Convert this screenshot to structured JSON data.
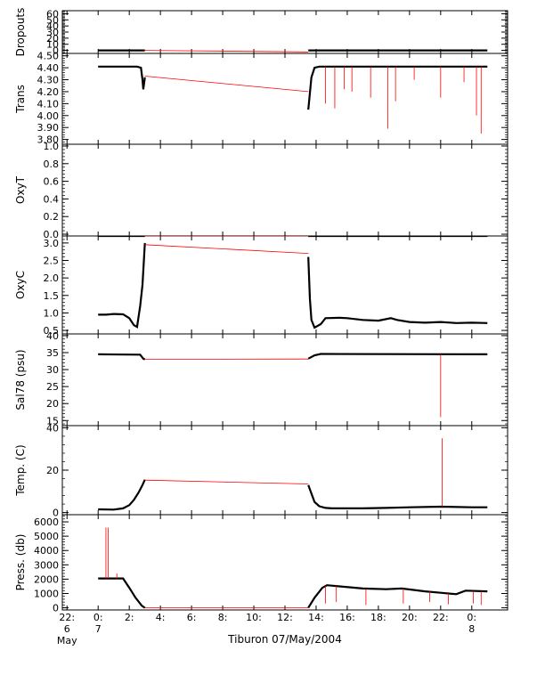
{
  "chart_data": {
    "type": "line",
    "x_axis": {
      "label": "Tiburon 07/May/2004",
      "ticks": [
        {
          "t": -2,
          "lines": [
            "22:",
            "6",
            "May"
          ]
        },
        {
          "t": 0,
          "lines": [
            "0:",
            "7"
          ]
        },
        {
          "t": 2,
          "lines": [
            "2:"
          ]
        },
        {
          "t": 4,
          "lines": [
            "4:"
          ]
        },
        {
          "t": 6,
          "lines": [
            "6:"
          ]
        },
        {
          "t": 8,
          "lines": [
            "8:"
          ]
        },
        {
          "t": 10,
          "lines": [
            "10:"
          ]
        },
        {
          "t": 12,
          "lines": [
            "12:"
          ]
        },
        {
          "t": 14,
          "lines": [
            "14:"
          ]
        },
        {
          "t": 16,
          "lines": [
            "16:"
          ]
        },
        {
          "t": 18,
          "lines": [
            "18:"
          ]
        },
        {
          "t": 20,
          "lines": [
            "20:"
          ]
        },
        {
          "t": 22,
          "lines": [
            "22:"
          ]
        },
        {
          "t": 24,
          "lines": [
            "0:",
            "8"
          ]
        }
      ],
      "range_hours": [
        -2.3,
        26.3
      ]
    },
    "panels": [
      {
        "id": "dropouts",
        "ylabel": "Dropouts",
        "ylim": [
          -5,
          65
        ],
        "ticks": [
          {
            "v": 0,
            "label": "0"
          },
          {
            "v": 10,
            "label": "10"
          },
          {
            "v": 20,
            "label": "20"
          },
          {
            "v": 30,
            "label": "30"
          },
          {
            "v": 40,
            "label": "40"
          },
          {
            "v": 50,
            "label": "50"
          },
          {
            "v": 60,
            "label": "60"
          }
        ],
        "series": [
          {
            "style": "black",
            "points": [
              [
                0,
                0
              ],
              [
                3.0,
                0
              ]
            ]
          },
          {
            "style": "black",
            "points": [
              [
                13.5,
                0
              ],
              [
                25.0,
                0
              ]
            ]
          },
          {
            "style": "red",
            "points": [
              [
                3.0,
                0
              ],
              [
                13.5,
                -2.5
              ]
            ]
          }
        ],
        "spikes": []
      },
      {
        "id": "trans",
        "ylabel": "Trans",
        "ylim": [
          3.76,
          4.52
        ],
        "ticks": [
          {
            "v": 3.8,
            "label": "3.80"
          },
          {
            "v": 3.9,
            "label": "3.90"
          },
          {
            "v": 4.0,
            "label": "4.00"
          },
          {
            "v": 4.1,
            "label": "4.10"
          },
          {
            "v": 4.2,
            "label": "4.20"
          },
          {
            "v": 4.3,
            "label": "4.30"
          },
          {
            "v": 4.4,
            "label": "4.40"
          },
          {
            "v": 4.5,
            "label": "4.50"
          }
        ],
        "series": [
          {
            "style": "black",
            "points": [
              [
                0,
                4.41
              ],
              [
                2.5,
                4.41
              ],
              [
                2.75,
                4.4
              ],
              [
                2.85,
                4.3
              ],
              [
                2.9,
                4.22
              ],
              [
                3.0,
                4.32
              ]
            ]
          },
          {
            "style": "red",
            "points": [
              [
                3.0,
                4.33
              ],
              [
                13.5,
                4.2
              ]
            ]
          },
          {
            "style": "black",
            "points": [
              [
                13.5,
                4.05
              ],
              [
                13.7,
                4.32
              ],
              [
                13.9,
                4.4
              ],
              [
                14.2,
                4.41
              ],
              [
                25.0,
                4.41
              ]
            ]
          }
        ],
        "spikes": [
          [
            14.6,
            4.1
          ],
          [
            15.2,
            4.06
          ],
          [
            15.8,
            4.22
          ],
          [
            16.3,
            4.2
          ],
          [
            17.5,
            4.15
          ],
          [
            18.6,
            3.89
          ],
          [
            19.1,
            4.12
          ],
          [
            20.3,
            4.3
          ],
          [
            22.0,
            4.15
          ],
          [
            23.5,
            4.28
          ],
          [
            24.3,
            4.0
          ],
          [
            24.6,
            3.85
          ]
        ]
      },
      {
        "id": "oxyt",
        "ylabel": "OxyT",
        "ylim": [
          -0.02,
          1.02
        ],
        "ticks": [
          {
            "v": 0.0,
            "label": "0.0"
          },
          {
            "v": 0.2,
            "label": "0.2"
          },
          {
            "v": 0.4,
            "label": "0.4"
          },
          {
            "v": 0.6,
            "label": "0.6"
          },
          {
            "v": 0.8,
            "label": "0.8"
          },
          {
            "v": 1.0,
            "label": "1.0"
          }
        ],
        "series": [],
        "spikes": []
      },
      {
        "id": "oxyc",
        "ylabel": "OxyC",
        "ylim": [
          0.4,
          3.2
        ],
        "ticks": [
          {
            "v": 0.5,
            "label": "0.5"
          },
          {
            "v": 1.0,
            "label": "1.0"
          },
          {
            "v": 1.5,
            "label": "1.5"
          },
          {
            "v": 2.0,
            "label": "2.0"
          },
          {
            "v": 2.5,
            "label": "2.5"
          },
          {
            "v": 3.0,
            "label": "3.0"
          }
        ],
        "series": [
          {
            "style": "black",
            "points": [
              [
                0,
                3.2
              ],
              [
                3.0,
                3.2
              ]
            ]
          },
          {
            "style": "black",
            "points": [
              [
                13.5,
                3.2
              ],
              [
                25.0,
                3.2
              ]
            ]
          },
          {
            "style": "red",
            "points": [
              [
                3.0,
                3.2
              ],
              [
                13.5,
                3.2
              ]
            ]
          },
          {
            "style": "black",
            "points": [
              [
                0,
                0.95
              ],
              [
                0.5,
                0.95
              ],
              [
                1.0,
                0.97
              ],
              [
                1.6,
                0.96
              ],
              [
                2.0,
                0.85
              ],
              [
                2.3,
                0.65
              ],
              [
                2.5,
                0.6
              ],
              [
                2.7,
                1.2
              ],
              [
                2.85,
                1.8
              ],
              [
                2.95,
                2.6
              ],
              [
                3.0,
                3.0
              ]
            ]
          },
          {
            "style": "red",
            "points": [
              [
                3.0,
                2.95
              ],
              [
                13.5,
                2.7
              ]
            ]
          },
          {
            "style": "black",
            "points": [
              [
                13.5,
                2.6
              ],
              [
                13.6,
                1.4
              ],
              [
                13.7,
                0.8
              ],
              [
                13.9,
                0.58
              ],
              [
                14.3,
                0.68
              ],
              [
                14.6,
                0.85
              ],
              [
                15.5,
                0.86
              ],
              [
                16.0,
                0.85
              ],
              [
                17.0,
                0.8
              ],
              [
                18.0,
                0.78
              ],
              [
                18.8,
                0.85
              ],
              [
                19.2,
                0.8
              ],
              [
                20.0,
                0.74
              ],
              [
                21.0,
                0.72
              ],
              [
                22.0,
                0.74
              ],
              [
                23.0,
                0.71
              ],
              [
                24.0,
                0.72
              ],
              [
                25.0,
                0.71
              ]
            ]
          }
        ],
        "spikes": []
      },
      {
        "id": "sal78",
        "ylabel": "Sal78 (psu)",
        "ylim": [
          13.5,
          40.5
        ],
        "ticks": [
          {
            "v": 15,
            "label": "15"
          },
          {
            "v": 20,
            "label": "20"
          },
          {
            "v": 25,
            "label": "25"
          },
          {
            "v": 30,
            "label": "30"
          },
          {
            "v": 35,
            "label": "35"
          },
          {
            "v": 40,
            "label": "40"
          }
        ],
        "series": [
          {
            "style": "black",
            "points": [
              [
                0,
                34.5
              ],
              [
                2.7,
                34.4
              ],
              [
                2.9,
                33.2
              ],
              [
                3.0,
                33.0
              ]
            ]
          },
          {
            "style": "red",
            "points": [
              [
                3.0,
                33.0
              ],
              [
                13.5,
                33.1
              ]
            ]
          },
          {
            "style": "black",
            "points": [
              [
                13.5,
                33.2
              ],
              [
                13.9,
                34.2
              ],
              [
                14.3,
                34.6
              ],
              [
                25.0,
                34.5
              ]
            ]
          }
        ],
        "spikes": [
          [
            22.0,
            16.0
          ]
        ]
      },
      {
        "id": "temp",
        "ylabel": "Temp. (C)",
        "ylim": [
          -1,
          41
        ],
        "ticks": [
          {
            "v": 0,
            "label": "0"
          },
          {
            "v": 20,
            "label": "20"
          },
          {
            "v": 40,
            "label": "40"
          }
        ],
        "series": [
          {
            "style": "black",
            "points": [
              [
                0,
                1.5
              ],
              [
                1.0,
                1.4
              ],
              [
                1.6,
                2.0
              ],
              [
                2.0,
                3.5
              ],
              [
                2.3,
                6.0
              ],
              [
                2.6,
                9.5
              ],
              [
                2.85,
                13.0
              ],
              [
                3.0,
                15.5
              ]
            ]
          },
          {
            "style": "red",
            "points": [
              [
                3.0,
                15.3
              ],
              [
                13.5,
                13.5
              ]
            ]
          },
          {
            "style": "black",
            "points": [
              [
                13.5,
                13.0
              ],
              [
                13.7,
                9.0
              ],
              [
                13.9,
                5.0
              ],
              [
                14.2,
                3.0
              ],
              [
                14.6,
                2.2
              ],
              [
                15.0,
                2.0
              ],
              [
                17.0,
                2.0
              ],
              [
                18.5,
                2.2
              ],
              [
                20.0,
                2.5
              ],
              [
                22.0,
                2.8
              ],
              [
                24.0,
                2.5
              ],
              [
                25.0,
                2.5
              ]
            ]
          }
        ],
        "spikes": [
          [
            22.1,
            35.0
          ]
        ]
      },
      {
        "id": "press",
        "ylabel": "Press. (db)",
        "ylim": [
          -150,
          6500
        ],
        "ticks": [
          {
            "v": 0,
            "label": "0"
          },
          {
            "v": 1000,
            "label": "1000"
          },
          {
            "v": 2000,
            "label": "2000"
          },
          {
            "v": 3000,
            "label": "3000"
          },
          {
            "v": 4000,
            "label": "4000"
          },
          {
            "v": 5000,
            "label": "5000"
          },
          {
            "v": 6000,
            "label": "6000"
          }
        ],
        "series": [
          {
            "style": "black",
            "points": [
              [
                0,
                2050
              ],
              [
                1.0,
                2050
              ],
              [
                1.6,
                2050
              ],
              [
                2.0,
                1400
              ],
              [
                2.4,
                700
              ],
              [
                2.8,
                150
              ],
              [
                3.0,
                0
              ]
            ]
          },
          {
            "style": "red",
            "points": [
              [
                3.0,
                0
              ],
              [
                13.5,
                0
              ]
            ]
          },
          {
            "style": "black",
            "points": [
              [
                13.5,
                0
              ],
              [
                13.9,
                700
              ],
              [
                14.4,
                1400
              ],
              [
                14.7,
                1580
              ],
              [
                15.5,
                1500
              ],
              [
                17.0,
                1350
              ],
              [
                18.5,
                1300
              ],
              [
                19.5,
                1350
              ],
              [
                21.0,
                1150
              ],
              [
                22.0,
                1050
              ],
              [
                23.0,
                950
              ],
              [
                23.6,
                1200
              ],
              [
                25.0,
                1150
              ]
            ]
          }
        ],
        "spikes": [
          [
            0.5,
            5600
          ],
          [
            0.65,
            5600
          ],
          [
            1.2,
            2400
          ],
          [
            14.6,
            300
          ],
          [
            15.3,
            400
          ],
          [
            17.2,
            200
          ],
          [
            19.6,
            300
          ],
          [
            21.3,
            400
          ],
          [
            22.5,
            250
          ],
          [
            24.1,
            300
          ],
          [
            24.6,
            200
          ]
        ]
      }
    ]
  }
}
